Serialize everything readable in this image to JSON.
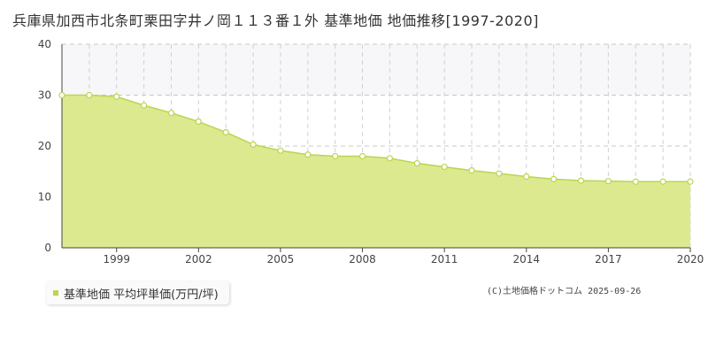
{
  "title": "兵庫県加西市北条町栗田字井ノ岡１１３番１外 基準地価 地価推移[1997-2020]",
  "legend_label": "基準地価 平均坪単価(万円/坪)",
  "credit": "(C)土地価格ドットコム 2025-09-26",
  "colors": {
    "fill": "#dde98f",
    "line": "#b8d650",
    "marker_fill": "#ffffff",
    "band": "#f7f7f9"
  },
  "chart_data": {
    "type": "area",
    "title": "兵庫県加西市北条町栗田字井ノ岡１１３番１外 基準地価 地価推移[1997-2020]",
    "xlabel": "",
    "ylabel": "",
    "x": [
      1997,
      1998,
      1999,
      2000,
      2001,
      2002,
      2003,
      2004,
      2005,
      2006,
      2007,
      2008,
      2009,
      2010,
      2011,
      2012,
      2013,
      2014,
      2015,
      2016,
      2017,
      2018,
      2019,
      2020
    ],
    "series": [
      {
        "name": "基準地価 平均坪単価(万円/坪)",
        "values": [
          30,
          30,
          29.7,
          28,
          26.5,
          24.8,
          22.7,
          20.3,
          19.1,
          18.3,
          18,
          18,
          17.6,
          16.6,
          15.9,
          15.2,
          14.6,
          14,
          13.5,
          13.2,
          13.1,
          13,
          13,
          13
        ]
      }
    ],
    "ylim": [
      0,
      40
    ],
    "xlim": [
      1997,
      2020
    ],
    "y_ticks": [
      0,
      10,
      20,
      30,
      40
    ],
    "x_ticks": [
      1999,
      2002,
      2005,
      2008,
      2011,
      2014,
      2017,
      2020
    ],
    "y_tick_labels": [
      "0",
      "10",
      "20",
      "30",
      "40"
    ],
    "x_tick_labels": [
      "1999",
      "2002",
      "2005",
      "2008",
      "2011",
      "2014",
      "2017",
      "2020"
    ],
    "grid": true,
    "legend_position": "bottom-left"
  }
}
